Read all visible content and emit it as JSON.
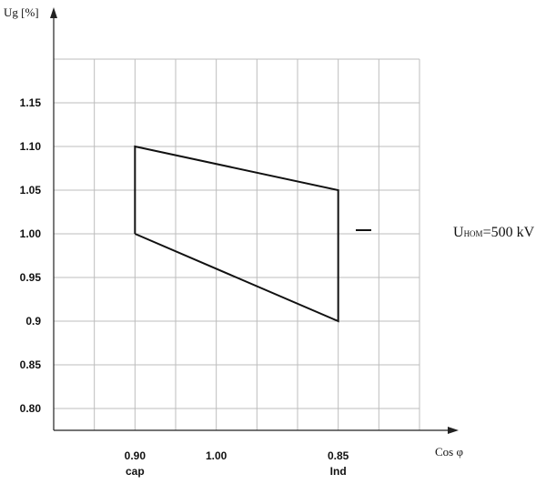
{
  "chart_data": {
    "type": "line",
    "ylabel": "Ug [%]",
    "xlabel": "Cos φ",
    "y_ticks": [
      "1.15",
      "1.10",
      "1.05",
      "1.00",
      "0.95",
      "0.9",
      "0.85",
      "0.80"
    ],
    "y_tick_values": [
      1.15,
      1.1,
      1.05,
      1.0,
      0.95,
      0.9,
      0.85,
      0.8
    ],
    "ylim": [
      0.775,
      1.2
    ],
    "x_ticks": [
      {
        "label": "0.90",
        "sub": "cap",
        "col": 2
      },
      {
        "label": "1.00",
        "sub": "",
        "col": 4
      },
      {
        "label": "0.85",
        "sub": "Ind",
        "col": 7
      }
    ],
    "grid": true,
    "grid_columns": 9,
    "series": [
      {
        "points": [
          {
            "col": 2,
            "y": 1.0
          },
          {
            "col": 2,
            "y": 1.1
          },
          {
            "col": 7,
            "y": 1.05
          },
          {
            "col": 7,
            "y": 0.9
          },
          {
            "col": 2,
            "y": 1.0
          }
        ]
      }
    ],
    "annotation": {
      "main": "U",
      "subscript": "НОМ",
      "value": "=500 kV"
    }
  }
}
